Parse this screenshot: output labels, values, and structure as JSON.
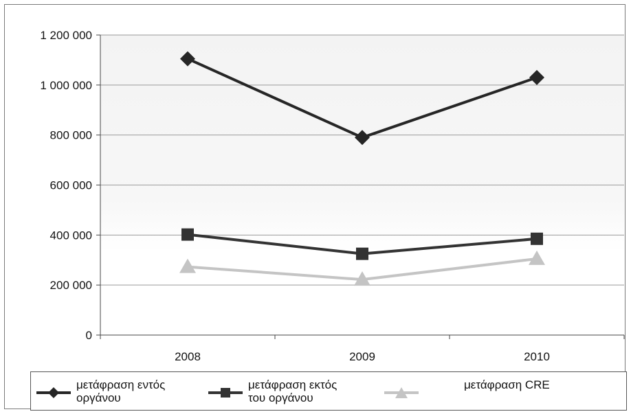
{
  "chart_data": {
    "type": "line",
    "categories": [
      "2008",
      "2009",
      "2010"
    ],
    "ylim": [
      0,
      1200000
    ],
    "yticks": [
      0,
      200000,
      400000,
      600000,
      800000,
      1000000,
      1200000
    ],
    "ytick_labels": [
      "0",
      "200 000",
      "400 000",
      "600 000",
      "800 000",
      "1 000 000",
      "1 200 000"
    ],
    "grid": "horizontal",
    "legend_position": "bottom",
    "series": [
      {
        "name": "μετάφραση  εντός\nοργάνου",
        "values": [
          1105000,
          790000,
          1030000
        ],
        "color": "#262626",
        "marker": "diamond"
      },
      {
        "name": "μετάφραση εκτός\nτου οργάνου",
        "values": [
          402000,
          325000,
          385000
        ],
        "color": "#333333",
        "marker": "square"
      },
      {
        "name": "μετάφραση   CRE",
        "values": [
          273000,
          222000,
          305000
        ],
        "color": "#c4c4c4",
        "marker": "triangle"
      }
    ]
  }
}
